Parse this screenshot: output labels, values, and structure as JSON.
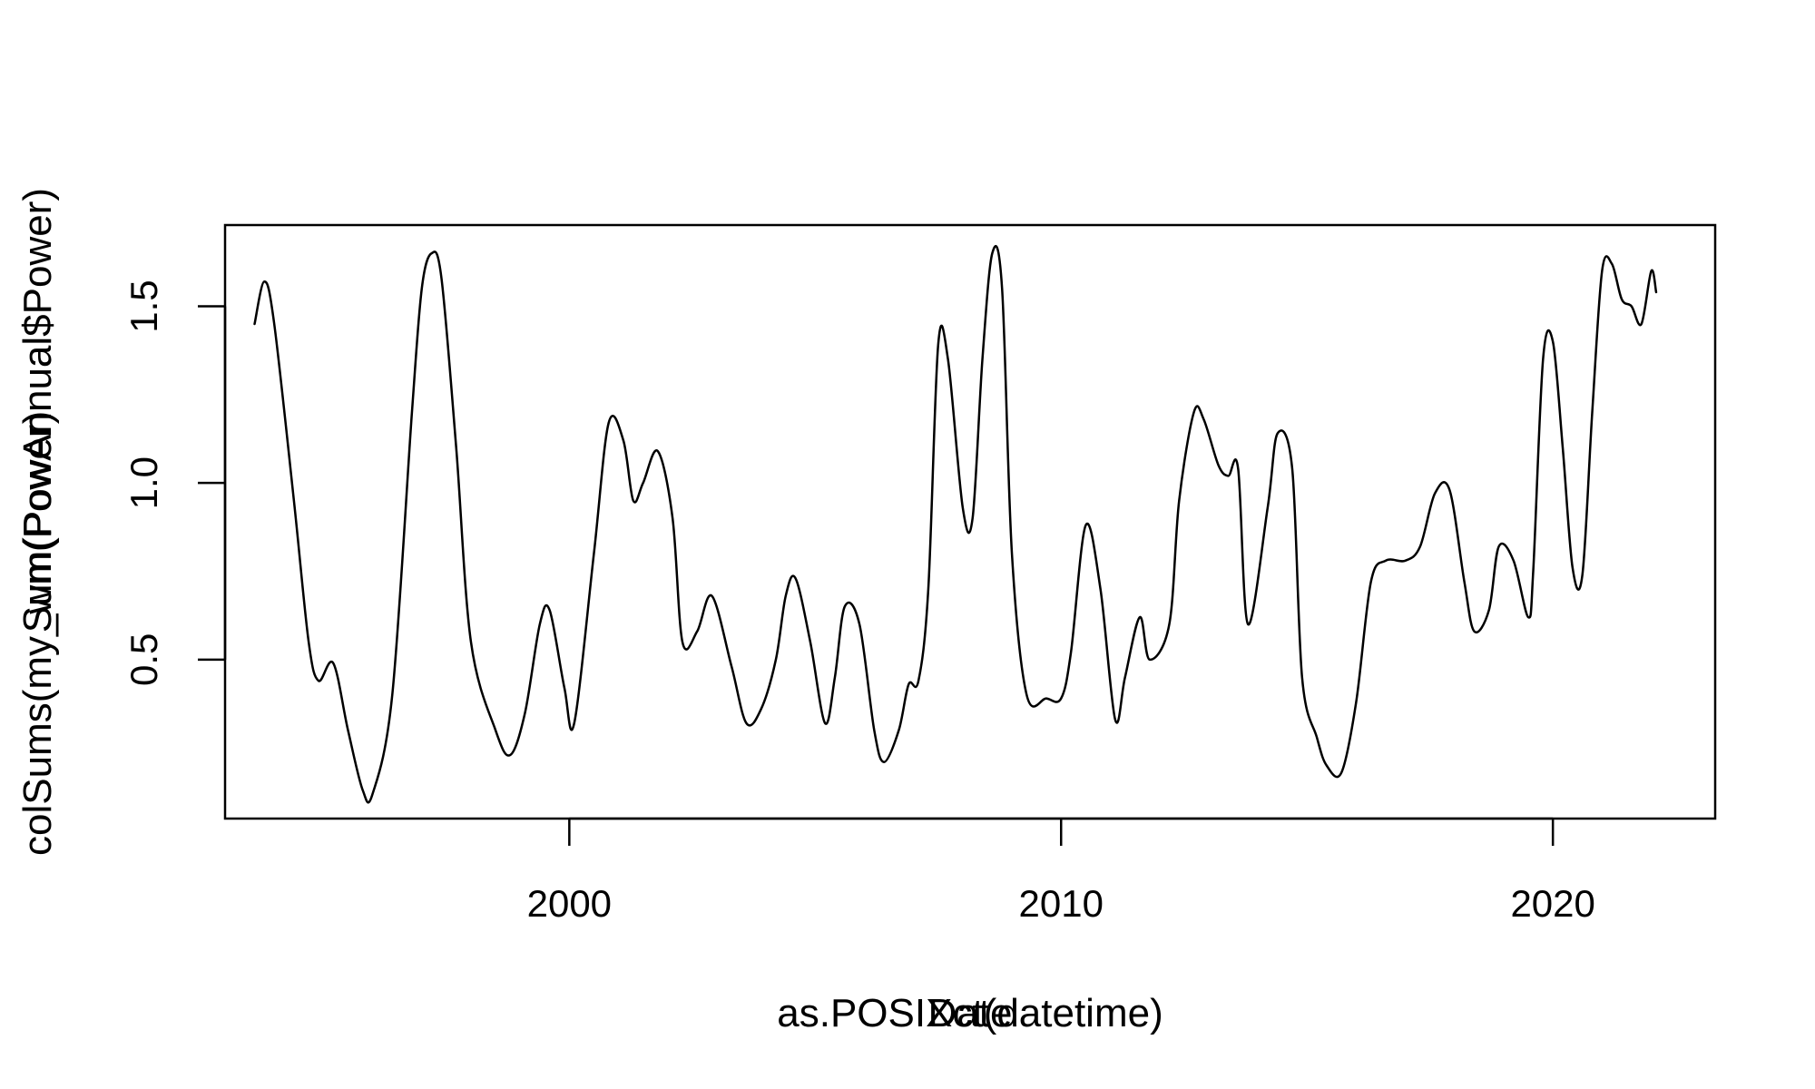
{
  "chart_data": {
    "type": "line",
    "xlabels": [
      "as.POSIXct(datetime)",
      "Date"
    ],
    "ylabels": [
      "colSums(my_wm(PowAnnual$Power)",
      "Sum(Power)"
    ],
    "xlim": [
      1993.0,
      2023.3
    ],
    "ylim": [
      0.05,
      1.73
    ],
    "x_ticks": [
      2000,
      2010,
      2020
    ],
    "x_tick_labels": [
      "2000",
      "2010",
      "2020"
    ],
    "y_ticks": [
      0.5,
      1.0,
      1.5
    ],
    "y_tick_labels": [
      "0.5",
      "1.0",
      "1.5"
    ],
    "grid": false,
    "line_color": "#000000",
    "series": [
      {
        "x": [
          1993.6,
          1993.8,
          1994.0,
          1994.4,
          1994.7,
          1994.9,
          1995.2,
          1995.5,
          1995.8,
          1996.0,
          1996.4,
          1996.8,
          1997.0,
          1997.2,
          1997.4,
          1997.7,
          1998.0,
          1998.5,
          1998.8,
          1999.1,
          1999.4,
          1999.6,
          1999.9,
          2000.1,
          2000.5,
          2000.8,
          2001.1,
          2001.3,
          2001.5,
          2001.8,
          2002.1,
          2002.3,
          2002.6,
          2002.9,
          2003.3,
          2003.6,
          2003.9,
          2004.2,
          2004.4,
          2004.6,
          2004.9,
          2005.2,
          2005.4,
          2005.6,
          2005.9,
          2006.2,
          2006.4,
          2006.7,
          2006.9,
          2007.1,
          2007.3,
          2007.5,
          2007.7,
          2008.0,
          2008.2,
          2008.4,
          2008.6,
          2008.8,
          2009.0,
          2009.3,
          2009.7,
          2010.0,
          2010.2,
          2010.5,
          2010.8,
          2011.1,
          2011.3,
          2011.6,
          2011.8,
          2012.2,
          2012.4,
          2012.7,
          2012.9,
          2013.2,
          2013.4,
          2013.6,
          2013.8,
          2014.2,
          2014.4,
          2014.7,
          2014.9,
          2015.2,
          2015.4,
          2015.7,
          2016.0,
          2016.3,
          2016.6,
          2017.0,
          2017.3,
          2017.6,
          2017.9,
          2018.2,
          2018.4,
          2018.7,
          2018.9,
          2019.2,
          2019.5,
          2019.6,
          2019.8,
          2020.0,
          2020.2,
          2020.4,
          2020.6,
          2020.8,
          2021.0,
          2021.2,
          2021.4,
          2021.6,
          2021.8,
          2022.0,
          2022.1
        ],
        "y": [
          1.45,
          1.57,
          1.45,
          0.95,
          0.55,
          0.44,
          0.49,
          0.3,
          0.13,
          0.12,
          0.4,
          1.2,
          1.55,
          1.65,
          1.58,
          1.1,
          0.55,
          0.3,
          0.23,
          0.35,
          0.6,
          0.64,
          0.42,
          0.32,
          0.8,
          1.17,
          1.12,
          0.95,
          1.0,
          1.09,
          0.9,
          0.55,
          0.58,
          0.68,
          0.48,
          0.32,
          0.36,
          0.5,
          0.68,
          0.73,
          0.55,
          0.32,
          0.45,
          0.65,
          0.6,
          0.3,
          0.21,
          0.3,
          0.43,
          0.44,
          0.7,
          1.39,
          1.35,
          0.93,
          0.9,
          1.35,
          1.65,
          1.55,
          0.8,
          0.4,
          0.39,
          0.39,
          0.52,
          0.88,
          0.7,
          0.33,
          0.45,
          0.62,
          0.5,
          0.6,
          0.95,
          1.2,
          1.18,
          1.05,
          1.02,
          1.04,
          0.6,
          0.93,
          1.14,
          1.04,
          0.45,
          0.28,
          0.2,
          0.18,
          0.38,
          0.72,
          0.78,
          0.78,
          0.82,
          0.97,
          0.98,
          0.72,
          0.58,
          0.64,
          0.82,
          0.78,
          0.62,
          0.75,
          1.35,
          1.4,
          1.1,
          0.76,
          0.74,
          1.2,
          1.6,
          1.62,
          1.52,
          1.5,
          1.45,
          1.6,
          1.54
        ]
      }
    ]
  }
}
